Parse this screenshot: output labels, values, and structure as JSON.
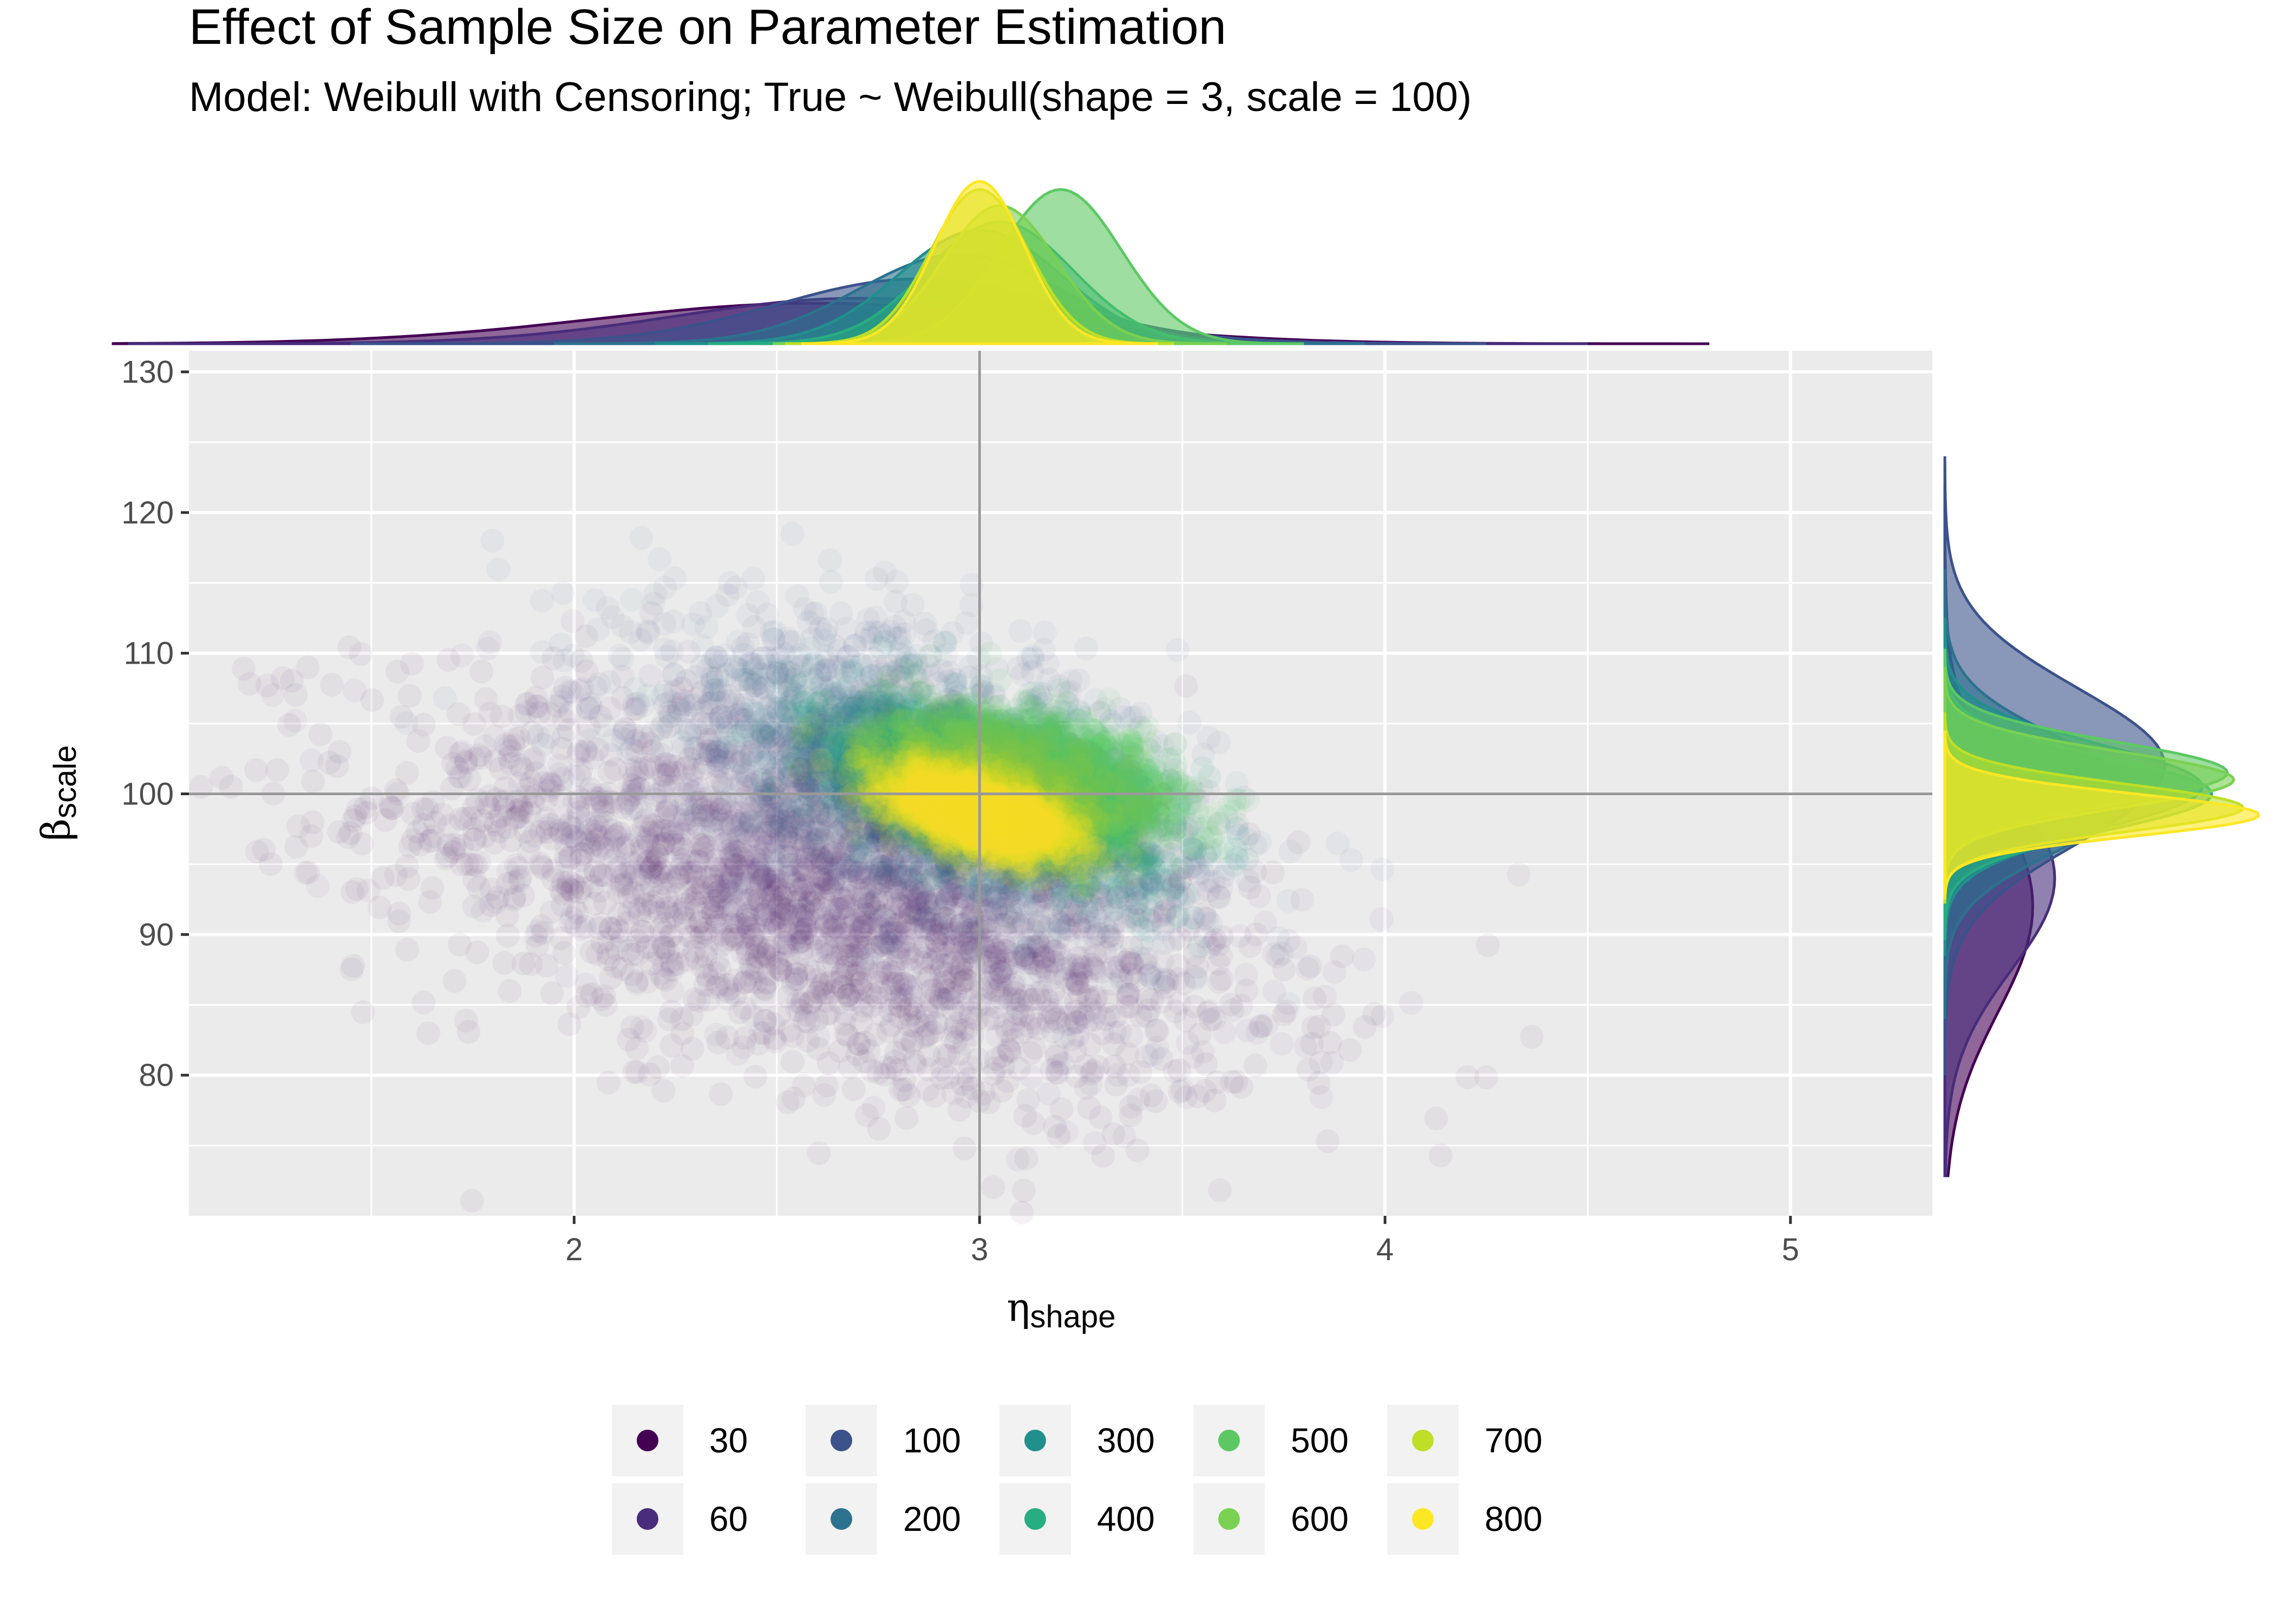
{
  "title": "Effect of Sample Size on Parameter Estimation",
  "subtitle": "Model: Weibull with Censoring; True ~ Weibull(shape = 3, scale = 100)",
  "chart_data": {
    "type": "scatter",
    "title": "Effect of Sample Size on Parameter Estimation",
    "subtitle": "Model: Weibull with Censoring; True ~ Weibull(shape = 3, scale = 100)",
    "xlabel": {
      "symbol": "η",
      "subscript": "shape"
    },
    "ylabel": {
      "symbol": "β",
      "subscript": "scale"
    },
    "xlim": [
      1.05,
      5.35
    ],
    "ylim": [
      70,
      131.5
    ],
    "x_ticks": [
      2,
      3,
      4,
      5
    ],
    "y_ticks": [
      80,
      90,
      100,
      110,
      120,
      130
    ],
    "reference_lines": {
      "x": 3,
      "y": 100
    },
    "grid": true,
    "legend_position": "bottom",
    "marginal_densities": {
      "top": "shape",
      "right": "scale"
    },
    "series": [
      {
        "name": "30",
        "color": "#440154",
        "x_center": 2.6,
        "x_sd": 0.55,
        "y_center": 92.0,
        "y_sd": 7.5,
        "points": 1500
      },
      {
        "name": "60",
        "color": "#472d7b",
        "x_center": 2.7,
        "x_sd": 0.45,
        "y_center": 94.0,
        "y_sd": 6.5,
        "points": 1300
      },
      {
        "name": "100",
        "color": "#3b528b",
        "x_center": 2.85,
        "x_sd": 0.35,
        "y_center": 102.0,
        "y_sd": 5.5,
        "points": 1200
      },
      {
        "name": "200",
        "color": "#2c728e",
        "x_center": 2.95,
        "x_sd": 0.25,
        "y_center": 100.0,
        "y_sd": 4.0,
        "points": 1400
      },
      {
        "name": "300",
        "color": "#21908d",
        "x_center": 3.0,
        "x_sd": 0.2,
        "y_center": 100.5,
        "y_sd": 3.0,
        "points": 1400
      },
      {
        "name": "400",
        "color": "#27ad81",
        "x_center": 3.05,
        "x_sd": 0.18,
        "y_center": 100.0,
        "y_sd": 2.6,
        "points": 1400
      },
      {
        "name": "500",
        "color": "#5dc863",
        "x_center": 3.2,
        "x_sd": 0.15,
        "y_center": 101.5,
        "y_sd": 2.2,
        "points": 1400
      },
      {
        "name": "600",
        "color": "#7ad151",
        "x_center": 3.05,
        "x_sd": 0.14,
        "y_center": 101.0,
        "y_sd": 2.0,
        "points": 1400
      },
      {
        "name": "700",
        "color": "#bddf26",
        "x_center": 3.0,
        "x_sd": 0.12,
        "y_center": 99.0,
        "y_sd": 1.7,
        "points": 1400
      },
      {
        "name": "800",
        "color": "#fde725",
        "x_center": 3.0,
        "x_sd": 0.11,
        "y_center": 98.5,
        "y_sd": 1.5,
        "points": 1600
      }
    ]
  }
}
